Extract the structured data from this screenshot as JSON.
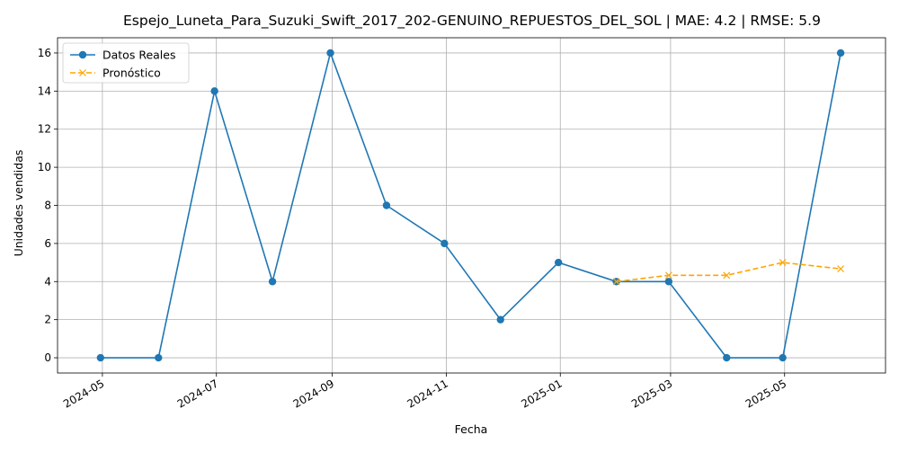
{
  "chart_data": {
    "type": "line",
    "title": "Espejo_Luneta_Para_Suzuki_Swift_2017_202-GENUINO_REPUESTOS_DEL_SOL | MAE: 4.2 | RMSE: 5.9",
    "xlabel": "Fecha",
    "ylabel": "Unidades vendidas",
    "xlim": [
      "2024-04-07",
      "2025-06-24"
    ],
    "ylim": [
      -0.8,
      16.8
    ],
    "x_ticks": [
      "2024-05",
      "2024-07",
      "2024-09",
      "2024-11",
      "2025-01",
      "2025-03",
      "2025-05"
    ],
    "y_ticks": [
      0,
      2,
      4,
      6,
      8,
      10,
      12,
      14,
      16
    ],
    "grid": true,
    "legend_position": "upper left",
    "series": [
      {
        "name": "Datos Reales",
        "color": "#1f77b4",
        "line_style": "solid",
        "marker": "circle",
        "x": [
          "2024-04-30",
          "2024-05-31",
          "2024-06-30",
          "2024-07-31",
          "2024-08-31",
          "2024-09-30",
          "2024-10-31",
          "2024-11-30",
          "2024-12-31",
          "2025-01-31",
          "2025-02-28",
          "2025-03-31",
          "2025-04-30",
          "2025-05-31"
        ],
        "values": [
          0,
          0,
          14,
          4,
          16,
          8,
          6,
          2,
          5,
          4,
          4,
          0,
          0,
          16
        ]
      },
      {
        "name": "Pronóstico",
        "color": "#ffa500",
        "line_style": "dashed",
        "marker": "x",
        "x": [
          "2025-01-31",
          "2025-02-28",
          "2025-03-31",
          "2025-04-30",
          "2025-05-31"
        ],
        "values": [
          4.0,
          4.33,
          4.33,
          5.0,
          4.67
        ]
      }
    ]
  }
}
